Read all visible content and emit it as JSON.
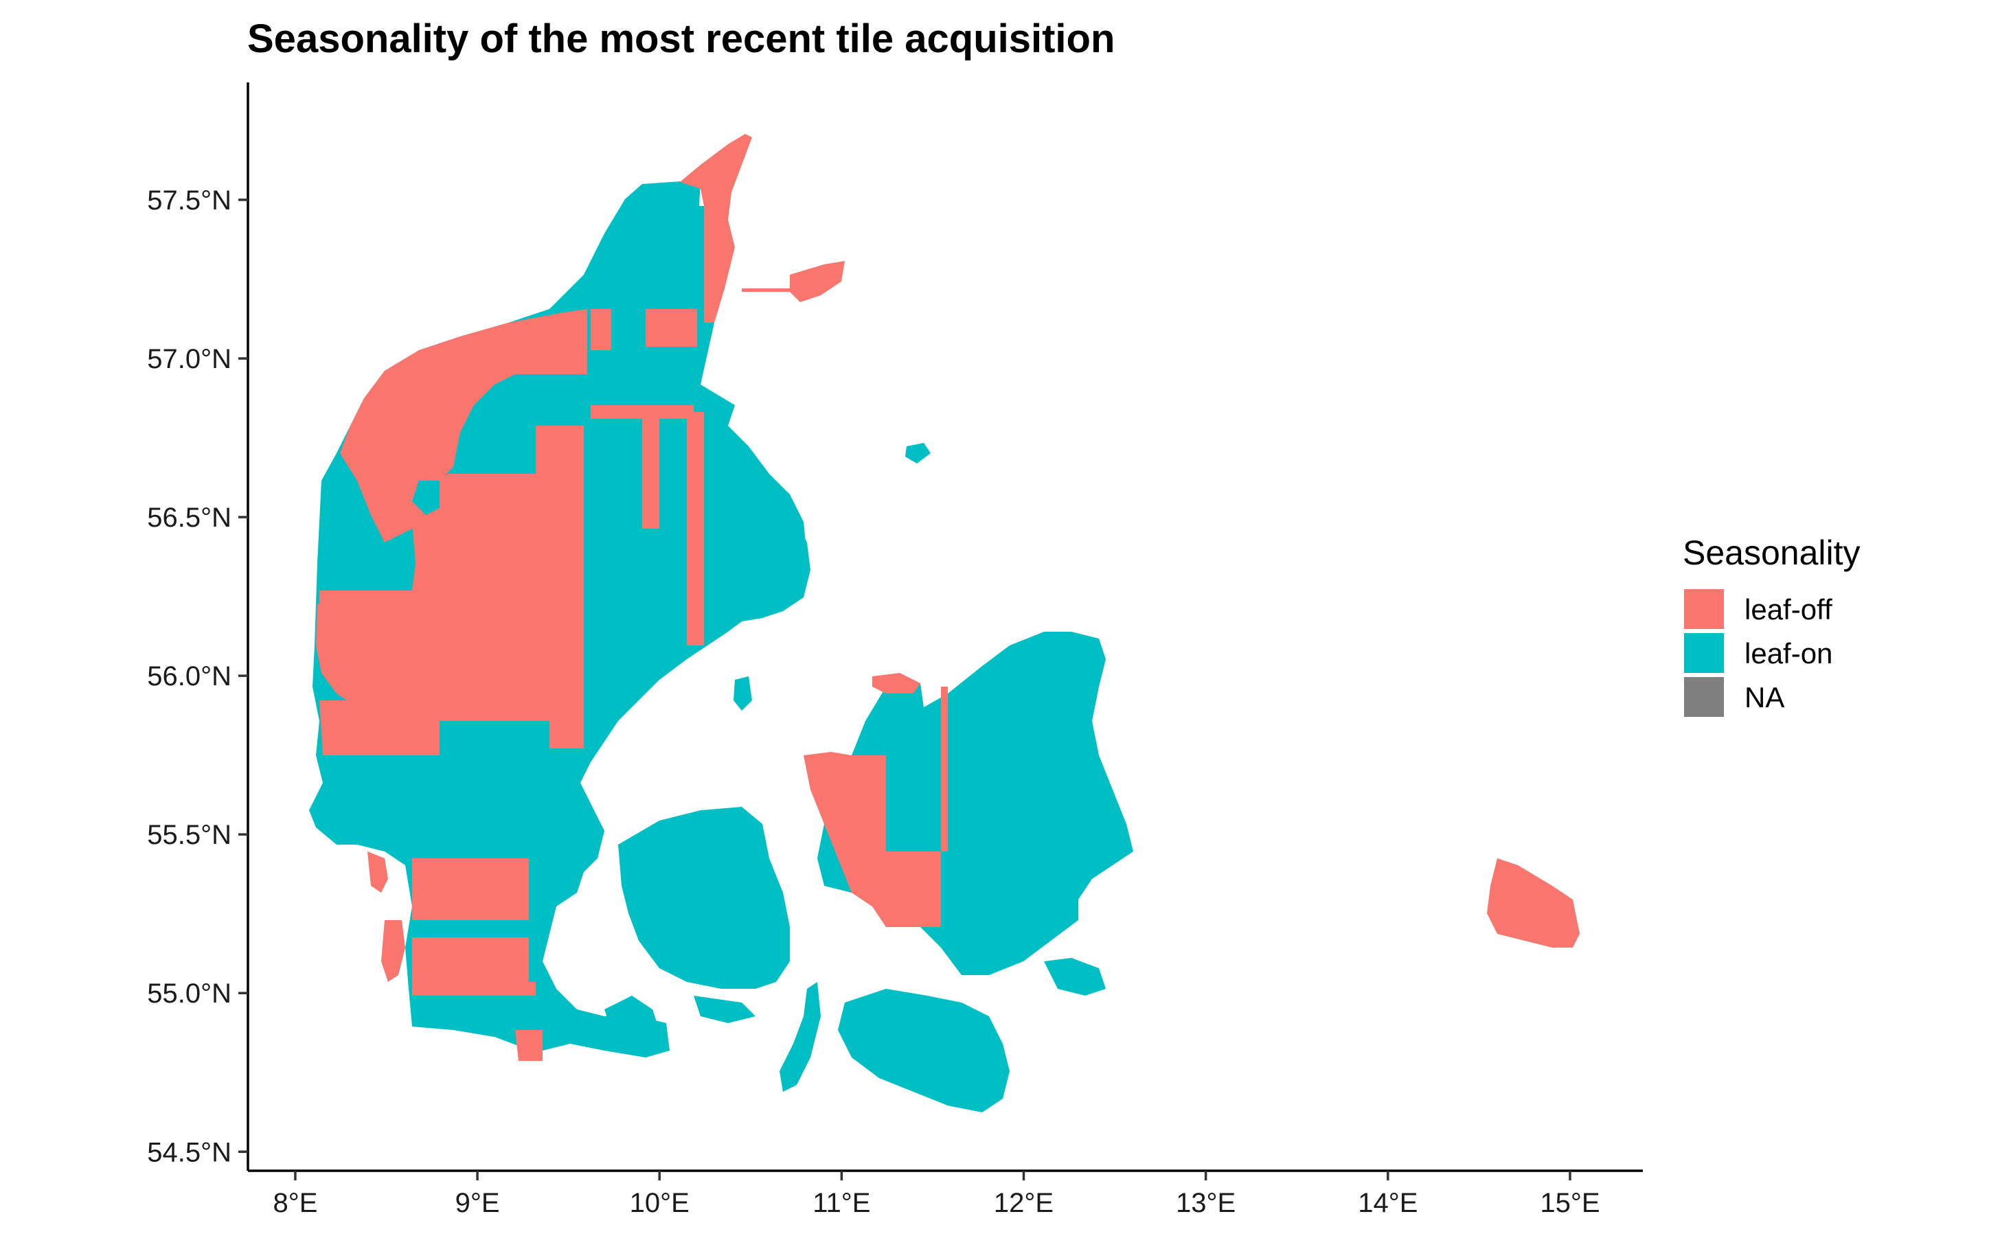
{
  "title": "Seasonality of the most recent tile acquisition",
  "axes": {
    "x": {
      "range": [
        7.74,
        15.4
      ],
      "ticks": [
        {
          "value": 8,
          "label": "8°E"
        },
        {
          "value": 9,
          "label": "9°E"
        },
        {
          "value": 10,
          "label": "10°E"
        },
        {
          "value": 11,
          "label": "11°E"
        },
        {
          "value": 12,
          "label": "12°E"
        },
        {
          "value": 13,
          "label": "13°E"
        },
        {
          "value": 14,
          "label": "14°E"
        },
        {
          "value": 15,
          "label": "15°E"
        }
      ]
    },
    "y": {
      "range": [
        54.44,
        57.87
      ],
      "ticks": [
        {
          "value": 54.5,
          "label": "54.5°N"
        },
        {
          "value": 55.0,
          "label": "55.0°N"
        },
        {
          "value": 55.5,
          "label": "55.5°N"
        },
        {
          "value": 56.0,
          "label": "56.0°N"
        },
        {
          "value": 56.5,
          "label": "56.5°N"
        },
        {
          "value": 57.0,
          "label": "57.0°N"
        },
        {
          "value": 57.5,
          "label": "57.5°N"
        }
      ]
    }
  },
  "legend": {
    "title": "Seasonality",
    "position": "right",
    "items": [
      {
        "label": "leaf-off",
        "color": "#F8766D"
      },
      {
        "label": "leaf-on",
        "color": "#00BFC4"
      },
      {
        "label": "NA",
        "color": "#7F7F7F"
      }
    ]
  },
  "colors": {
    "leaf_off": "#F8766D",
    "leaf_on": "#00BFC4"
  }
}
